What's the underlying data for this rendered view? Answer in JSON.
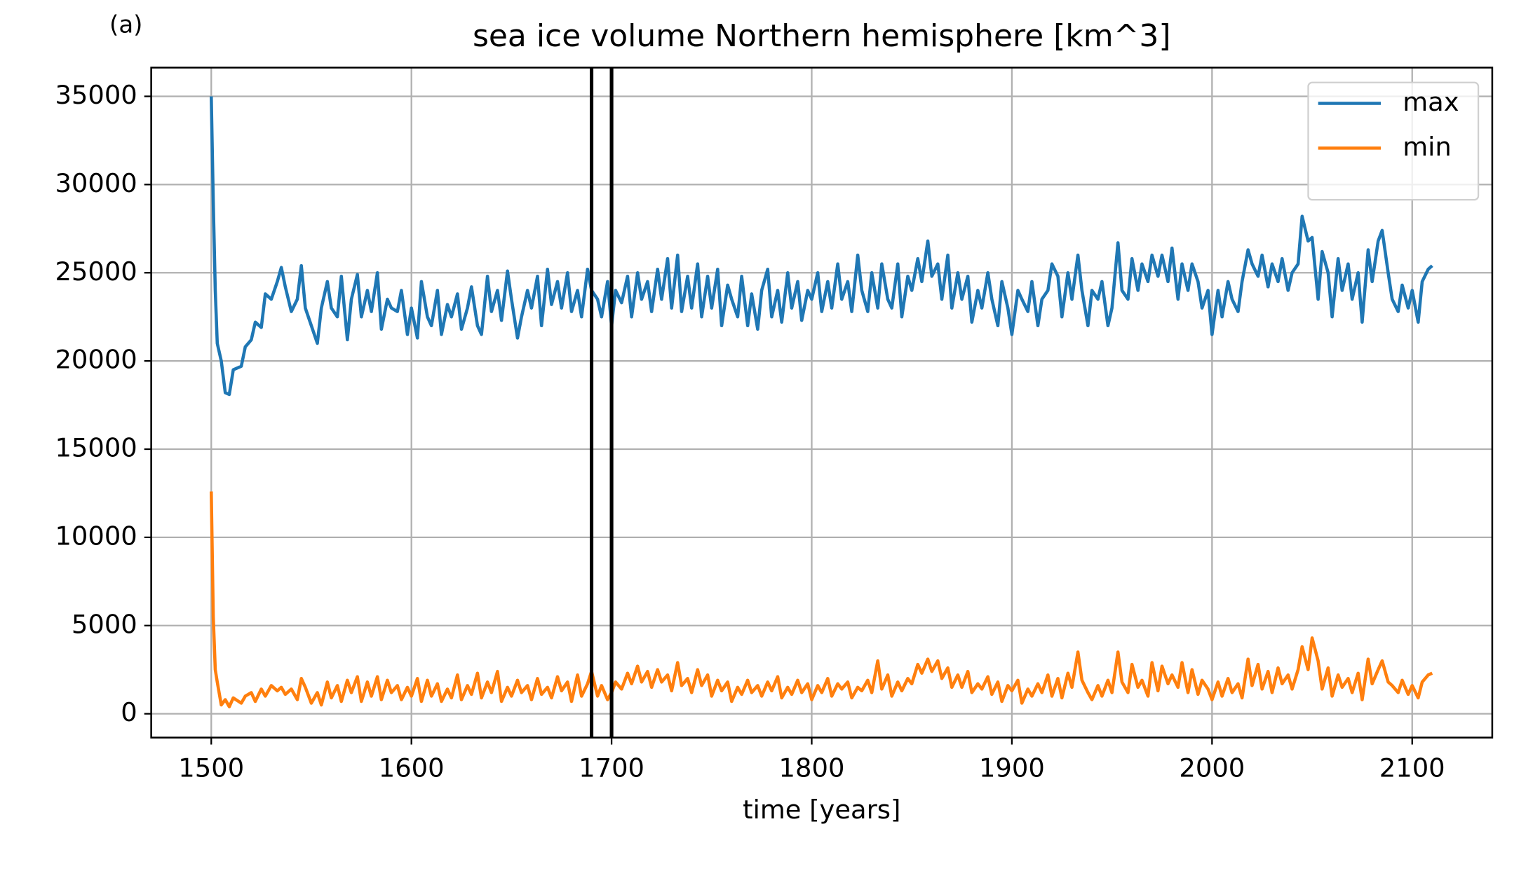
{
  "chart_data": {
    "type": "line",
    "title": "sea ice volume Northern hemisphere [km^3]",
    "panel_label": "(a)",
    "xlabel": "time [years]",
    "xlim": [
      1470,
      2140
    ],
    "ylim": [
      -1350,
      36630
    ],
    "xticks": [
      1500,
      1600,
      1700,
      1800,
      1900,
      2000,
      2100
    ],
    "yticks": [
      0,
      5000,
      10000,
      15000,
      20000,
      25000,
      30000,
      35000
    ],
    "grid": true,
    "legend": "upper right",
    "vlines": [
      1690,
      1700
    ],
    "x": [
      1500,
      1501,
      1502,
      1503,
      1505,
      1507,
      1509,
      1511,
      1515,
      1517,
      1520,
      1522,
      1525,
      1527,
      1530,
      1533,
      1535,
      1537,
      1540,
      1543,
      1545,
      1547,
      1550,
      1553,
      1555,
      1558,
      1560,
      1563,
      1565,
      1568,
      1570,
      1573,
      1575,
      1578,
      1580,
      1583,
      1585,
      1588,
      1590,
      1593,
      1595,
      1598,
      1600,
      1603,
      1605,
      1608,
      1610,
      1613,
      1615,
      1618,
      1620,
      1623,
      1625,
      1628,
      1630,
      1633,
      1635,
      1638,
      1640,
      1643,
      1645,
      1648,
      1650,
      1653,
      1655,
      1658,
      1660,
      1663,
      1665,
      1668,
      1670,
      1673,
      1675,
      1678,
      1680,
      1683,
      1685,
      1688,
      1690,
      1693,
      1695,
      1698,
      1700,
      1702,
      1705,
      1708,
      1710,
      1713,
      1715,
      1718,
      1720,
      1723,
      1725,
      1728,
      1730,
      1733,
      1735,
      1738,
      1740,
      1743,
      1745,
      1748,
      1750,
      1753,
      1755,
      1758,
      1760,
      1763,
      1765,
      1768,
      1770,
      1773,
      1775,
      1778,
      1780,
      1783,
      1785,
      1788,
      1790,
      1793,
      1795,
      1798,
      1800,
      1803,
      1805,
      1808,
      1810,
      1813,
      1815,
      1818,
      1820,
      1823,
      1825,
      1828,
      1830,
      1833,
      1835,
      1838,
      1840,
      1843,
      1845,
      1848,
      1850,
      1853,
      1855,
      1858,
      1860,
      1863,
      1865,
      1868,
      1870,
      1873,
      1875,
      1878,
      1880,
      1883,
      1885,
      1888,
      1890,
      1893,
      1895,
      1898,
      1900,
      1903,
      1905,
      1908,
      1910,
      1913,
      1915,
      1918,
      1920,
      1923,
      1925,
      1928,
      1930,
      1933,
      1935,
      1938,
      1940,
      1943,
      1945,
      1948,
      1950,
      1953,
      1955,
      1958,
      1960,
      1963,
      1965,
      1968,
      1970,
      1973,
      1975,
      1978,
      1980,
      1983,
      1985,
      1988,
      1990,
      1993,
      1995,
      1998,
      2000,
      2003,
      2005,
      2008,
      2010,
      2013,
      2015,
      2018,
      2020,
      2023,
      2025,
      2028,
      2030,
      2033,
      2035,
      2038,
      2040,
      2043,
      2045,
      2048,
      2050,
      2053,
      2055,
      2058,
      2060,
      2063,
      2065,
      2068,
      2070,
      2073,
      2075,
      2078,
      2080,
      2083,
      2085,
      2088,
      2090,
      2093,
      2095,
      2098,
      2100,
      2103,
      2105,
      2108,
      2110
    ],
    "series": [
      {
        "name": "max",
        "color": "#1f77b4",
        "values": [
          35000,
          29000,
          24000,
          21000,
          20000,
          18200,
          18100,
          19500,
          19700,
          20800,
          21200,
          22200,
          21900,
          23800,
          23500,
          24500,
          25300,
          24200,
          22800,
          23500,
          25400,
          23000,
          22000,
          21000,
          23000,
          24500,
          23000,
          22500,
          24800,
          21200,
          23500,
          24900,
          22500,
          24000,
          22800,
          25000,
          21800,
          23500,
          23000,
          22800,
          24000,
          21500,
          23000,
          21300,
          24500,
          22500,
          22000,
          24000,
          21500,
          23200,
          22500,
          23800,
          21800,
          23000,
          24200,
          22000,
          21500,
          24800,
          22800,
          24000,
          22300,
          25100,
          23500,
          21300,
          22500,
          24000,
          23000,
          24800,
          22000,
          25200,
          23200,
          24500,
          23000,
          25000,
          22800,
          24000,
          22500,
          25200,
          24000,
          23500,
          22500,
          24500,
          22000,
          24000,
          23300,
          24800,
          22500,
          25000,
          23500,
          24500,
          22800,
          25200,
          23500,
          25800,
          23000,
          26000,
          22800,
          24800,
          23000,
          25500,
          22500,
          24800,
          23000,
          25200,
          22000,
          24300,
          23500,
          22500,
          24800,
          22000,
          23800,
          21800,
          24000,
          25200,
          22500,
          24000,
          22200,
          25000,
          23000,
          24500,
          22300,
          24000,
          23500,
          25000,
          22800,
          24500,
          23000,
          25500,
          23500,
          24500,
          22800,
          26000,
          24000,
          22800,
          25000,
          23000,
          25500,
          23500,
          23000,
          25500,
          22500,
          24800,
          24000,
          25800,
          24500,
          26800,
          24800,
          25500,
          23500,
          26000,
          23000,
          25000,
          23500,
          24800,
          22200,
          24000,
          23000,
          25000,
          23500,
          22000,
          24500,
          23000,
          21500,
          24000,
          23500,
          22800,
          24500,
          22000,
          23500,
          24000,
          25500,
          24800,
          22500,
          25000,
          23500,
          26000,
          24000,
          22000,
          24000,
          23500,
          24500,
          22000,
          23000,
          26700,
          24000,
          23500,
          25800,
          24000,
          25500,
          24500,
          26000,
          24800,
          26000,
          24500,
          26400,
          23500,
          25500,
          24000,
          25500,
          24500,
          23000,
          24000,
          21500,
          24000,
          22500,
          24500,
          23500,
          22800,
          24500,
          26300,
          25500,
          24800,
          26000,
          24200,
          25500,
          24500,
          25800,
          24000,
          25000,
          25500,
          28200,
          26800,
          27000,
          23500,
          26200,
          25000,
          22500,
          25800,
          24000,
          25500,
          23500,
          25000,
          22200,
          26300,
          24500,
          26800,
          27400,
          25000,
          23500,
          22800,
          24300,
          23000,
          24000,
          22200,
          24500,
          25200,
          25400
        ]
      },
      {
        "name": "min",
        "color": "#ff7f0e",
        "values": [
          12600,
          5500,
          2500,
          1800,
          500,
          800,
          400,
          900,
          600,
          1000,
          1200,
          700,
          1400,
          1000,
          1600,
          1300,
          1500,
          1100,
          1400,
          800,
          2000,
          1500,
          600,
          1200,
          500,
          1800,
          900,
          1600,
          700,
          1900,
          1200,
          2100,
          700,
          1800,
          1000,
          2100,
          800,
          1900,
          1200,
          1600,
          800,
          1500,
          1000,
          2000,
          700,
          1900,
          1000,
          1700,
          700,
          1400,
          900,
          2200,
          800,
          1600,
          1100,
          2300,
          900,
          1800,
          1200,
          2400,
          700,
          1500,
          1000,
          1900,
          1200,
          1600,
          800,
          2000,
          1100,
          1500,
          900,
          2100,
          1300,
          1800,
          700,
          2200,
          1000,
          1700,
          2400,
          1000,
          1600,
          800,
          1200,
          1800,
          1400,
          2300,
          1700,
          2700,
          1800,
          2400,
          1500,
          2500,
          1800,
          2200,
          1300,
          2900,
          1600,
          2000,
          1200,
          2500,
          1600,
          2200,
          1000,
          1900,
          1300,
          1800,
          700,
          1500,
          1100,
          1900,
          1200,
          1600,
          1000,
          1800,
          1300,
          2100,
          900,
          1500,
          1100,
          1900,
          1200,
          1700,
          800,
          1600,
          1200,
          2000,
          1000,
          1700,
          1400,
          1800,
          900,
          1500,
          1300,
          1900,
          1200,
          3000,
          1400,
          2200,
          1000,
          1800,
          1300,
          2000,
          1700,
          2800,
          2300,
          3100,
          2400,
          3000,
          2000,
          2600,
          1500,
          2200,
          1500,
          2400,
          1200,
          1700,
          1400,
          2100,
          1100,
          1800,
          700,
          1600,
          1300,
          1900,
          600,
          1400,
          1000,
          1700,
          1200,
          2200,
          1000,
          2000,
          900,
          2300,
          1500,
          3500,
          1900,
          1200,
          800,
          1600,
          1000,
          1900,
          1200,
          3500,
          1800,
          1200,
          2800,
          1500,
          1900,
          1000,
          2900,
          1300,
          2700,
          1700,
          2200,
          1500,
          2900,
          1200,
          2500,
          1100,
          1900,
          1400,
          800,
          1800,
          1000,
          2000,
          1200,
          1700,
          900,
          3100,
          1600,
          2800,
          1400,
          2400,
          1200,
          2600,
          1700,
          2200,
          1400,
          2500,
          3800,
          2500,
          4300,
          3000,
          1400,
          2600,
          1000,
          2200,
          1500,
          2000,
          1200,
          2300,
          800,
          3100,
          1700,
          2500,
          3000,
          1800,
          1600,
          1200,
          1900,
          1100,
          1600,
          900,
          1800,
          2200,
          2300
        ]
      }
    ]
  }
}
